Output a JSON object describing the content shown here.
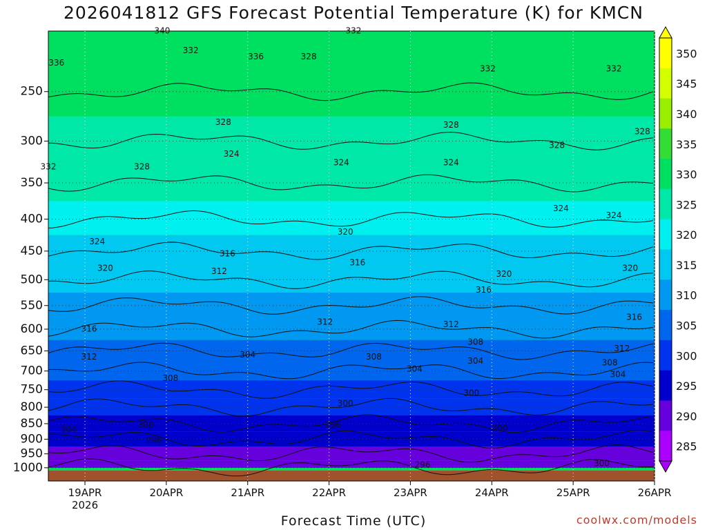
{
  "title": "2026041812 GFS Forecast Potential Temperature (K) for KMCN",
  "credit": "coolwx.com/models",
  "chart_data": {
    "type": "heatmap",
    "title": "2026041812 GFS Forecast Potential Temperature (K) for KMCN",
    "xlabel": "Forecast Time (UTC)",
    "ylabel": "",
    "y_ticks": [
      "250",
      "300",
      "350",
      "400",
      "450",
      "500",
      "550",
      "600",
      "650",
      "700",
      "750",
      "800",
      "850",
      "900",
      "950",
      "1000"
    ],
    "y_scale": "log-pressure, inverted",
    "x_ticks": [
      "19APR",
      "20APR",
      "21APR",
      "22APR",
      "23APR",
      "24APR",
      "25APR",
      "26APR"
    ],
    "x_year": "2026",
    "colorbar_ticks": [
      "350",
      "345",
      "340",
      "335",
      "330",
      "325",
      "320",
      "315",
      "310",
      "305",
      "300",
      "295",
      "290",
      "285"
    ],
    "colorbar_colors": [
      "#ffff00",
      "#d4ff00",
      "#99ee00",
      "#33dd33",
      "#00e060",
      "#00e8a8",
      "#00f0f0",
      "#00c8f0",
      "#0098f0",
      "#0066ee",
      "#0033ee",
      "#0000cc",
      "#6600dd",
      "#aa00ff"
    ],
    "levels": [
      {
        "pressure": 250,
        "theta": 331
      },
      {
        "pressure": 300,
        "theta": 328
      },
      {
        "pressure": 350,
        "theta": 325
      },
      {
        "pressure": 400,
        "theta": 322
      },
      {
        "pressure": 450,
        "theta": 319
      },
      {
        "pressure": 500,
        "theta": 316
      },
      {
        "pressure": 550,
        "theta": 313
      },
      {
        "pressure": 600,
        "theta": 311
      },
      {
        "pressure": 650,
        "theta": 309
      },
      {
        "pressure": 700,
        "theta": 306
      },
      {
        "pressure": 750,
        "theta": 303
      },
      {
        "pressure": 800,
        "theta": 300
      },
      {
        "pressure": 850,
        "theta": 298
      },
      {
        "pressure": 900,
        "theta": 296
      },
      {
        "pressure": 950,
        "theta": 294
      },
      {
        "pressure": 1000,
        "theta": 292
      }
    ],
    "contour_labels": [
      {
        "text": "340",
        "day": 19.95,
        "p": 200
      },
      {
        "text": "332",
        "day": 20.3,
        "p": 215
      },
      {
        "text": "336",
        "day": 18.65,
        "p": 225
      },
      {
        "text": "336",
        "day": 21.1,
        "p": 220
      },
      {
        "text": "328",
        "day": 21.75,
        "p": 220
      },
      {
        "text": "332",
        "day": 22.3,
        "p": 200
      },
      {
        "text": "332",
        "day": 23.95,
        "p": 230
      },
      {
        "text": "332",
        "day": 25.5,
        "p": 230
      },
      {
        "text": "328",
        "day": 20.7,
        "p": 280
      },
      {
        "text": "328",
        "day": 23.5,
        "p": 283
      },
      {
        "text": "328",
        "day": 24.8,
        "p": 305
      },
      {
        "text": "328",
        "day": 25.85,
        "p": 290
      },
      {
        "text": "332",
        "day": 18.55,
        "p": 330
      },
      {
        "text": "328",
        "day": 19.7,
        "p": 330
      },
      {
        "text": "324",
        "day": 20.8,
        "p": 315
      },
      {
        "text": "324",
        "day": 22.15,
        "p": 325
      },
      {
        "text": "324",
        "day": 23.5,
        "p": 325
      },
      {
        "text": "324",
        "day": 24.85,
        "p": 385
      },
      {
        "text": "324",
        "day": 25.5,
        "p": 395
      },
      {
        "text": "320",
        "day": 22.2,
        "p": 420
      },
      {
        "text": "324",
        "day": 19.15,
        "p": 435
      },
      {
        "text": "320",
        "day": 19.25,
        "p": 480
      },
      {
        "text": "316",
        "day": 20.75,
        "p": 455
      },
      {
        "text": "312",
        "day": 20.65,
        "p": 485
      },
      {
        "text": "316",
        "day": 22.35,
        "p": 470
      },
      {
        "text": "320",
        "day": 24.15,
        "p": 490
      },
      {
        "text": "320",
        "day": 25.7,
        "p": 480
      },
      {
        "text": "316",
        "day": 23.9,
        "p": 520
      },
      {
        "text": "316",
        "day": 25.75,
        "p": 575
      },
      {
        "text": "316",
        "day": 19.05,
        "p": 600
      },
      {
        "text": "312",
        "day": 21.95,
        "p": 585
      },
      {
        "text": "312",
        "day": 23.5,
        "p": 590
      },
      {
        "text": "308",
        "day": 23.8,
        "p": 630
      },
      {
        "text": "312",
        "day": 25.6,
        "p": 645
      },
      {
        "text": "312",
        "day": 19.05,
        "p": 665
      },
      {
        "text": "304",
        "day": 21.0,
        "p": 660
      },
      {
        "text": "308",
        "day": 22.55,
        "p": 665
      },
      {
        "text": "304",
        "day": 23.8,
        "p": 675
      },
      {
        "text": "308",
        "day": 25.45,
        "p": 680
      },
      {
        "text": "304",
        "day": 23.05,
        "p": 695
      },
      {
        "text": "304",
        "day": 25.55,
        "p": 710
      },
      {
        "text": "308",
        "day": 20.05,
        "p": 720
      },
      {
        "text": "300",
        "day": 23.75,
        "p": 760
      },
      {
        "text": "300",
        "day": 22.2,
        "p": 790
      },
      {
        "text": "296",
        "day": 22.05,
        "p": 855
      },
      {
        "text": "300",
        "day": 24.1,
        "p": 865
      },
      {
        "text": "304",
        "day": 18.8,
        "p": 870
      },
      {
        "text": "300",
        "day": 19.75,
        "p": 855
      },
      {
        "text": "296",
        "day": 19.85,
        "p": 905
      },
      {
        "text": "296",
        "day": 23.15,
        "p": 990
      },
      {
        "text": "300",
        "day": 25.35,
        "p": 985
      }
    ]
  }
}
